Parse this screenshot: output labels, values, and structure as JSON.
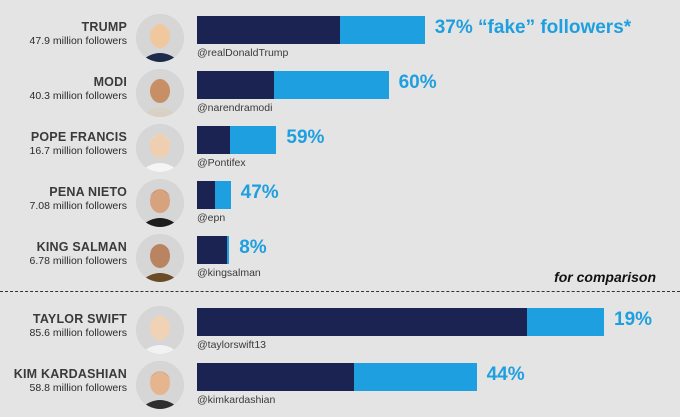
{
  "chart_data": {
    "type": "bar",
    "orientation": "horizontal",
    "stacked": true,
    "title": "",
    "xlabel": "",
    "ylabel": "",
    "colors": {
      "real": "#1b2352",
      "fake": "#1e9fe0"
    },
    "first_percent_suffix": " “fake” followers*",
    "comparison_label": "for comparison",
    "leaders": [
      {
        "name": "TRUMP",
        "followers_label": "47.9 million followers",
        "followers_millions": 47.9,
        "fake_pct": 37,
        "pct_label": "37%",
        "handle": "@realDonaldTrump"
      },
      {
        "name": "MODI",
        "followers_label": "40.3 million followers",
        "followers_millions": 40.3,
        "fake_pct": 60,
        "pct_label": "60%",
        "handle": "@narendramodi"
      },
      {
        "name": "POPE FRANCIS",
        "followers_label": "16.7 million followers",
        "followers_millions": 16.7,
        "fake_pct": 59,
        "pct_label": "59%",
        "handle": "@Pontifex"
      },
      {
        "name": "PENA NIETO",
        "followers_label": "7.08 million followers",
        "followers_millions": 7.08,
        "fake_pct": 47,
        "pct_label": "47%",
        "handle": "@epn"
      },
      {
        "name": "KING SALMAN",
        "followers_label": "6.78 million followers",
        "followers_millions": 6.78,
        "fake_pct": 8,
        "pct_label": "8%",
        "handle": "@kingsalman"
      }
    ],
    "comparison": [
      {
        "name": "TAYLOR SWIFT",
        "followers_label": "85.6 million followers",
        "followers_millions": 85.6,
        "fake_pct": 19,
        "pct_label": "19%",
        "handle": "@taylorswift13"
      },
      {
        "name": "KIM KARDASHIAN",
        "followers_label": "58.8 million followers",
        "followers_millions": 58.8,
        "fake_pct": 44,
        "pct_label": "44%",
        "handle": "@kimkardashian"
      }
    ]
  }
}
